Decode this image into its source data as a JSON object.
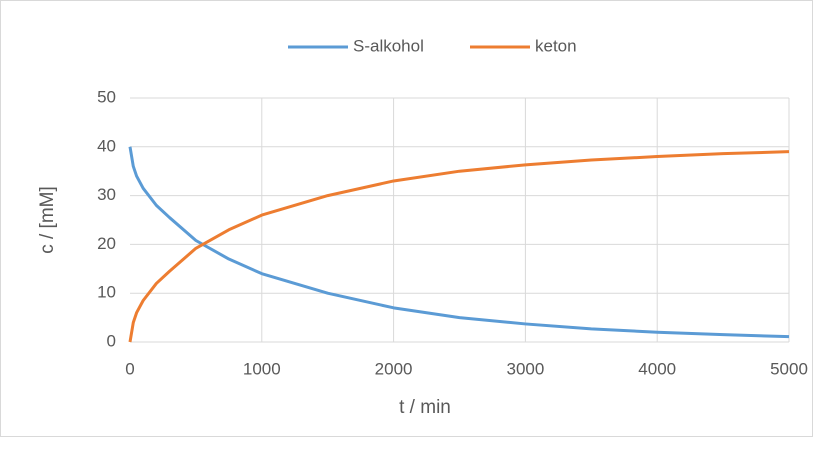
{
  "chart_data": {
    "type": "line",
    "xlabel": "t / min",
    "ylabel": "c / [mM]",
    "x": [
      0,
      25,
      50,
      100,
      200,
      300,
      500,
      750,
      1000,
      1500,
      2000,
      2500,
      3000,
      3500,
      4000,
      4500,
      5000
    ],
    "series": [
      {
        "name": "S-alkohol",
        "color": "#5b9bd5",
        "values": [
          40,
          36,
          34,
          31.5,
          28,
          25.5,
          20.8,
          17,
          14,
          10,
          7,
          5,
          3.7,
          2.7,
          2,
          1.5,
          1.1
        ]
      },
      {
        "name": "keton",
        "color": "#ed7d31",
        "values": [
          0,
          4,
          6,
          8.5,
          12,
          14.5,
          19.2,
          23,
          26,
          30,
          33,
          35,
          36.3,
          37.3,
          38,
          38.6,
          39
        ]
      }
    ],
    "xlim": [
      0,
      5000
    ],
    "xticks": [
      0,
      1000,
      2000,
      3000,
      4000,
      5000
    ],
    "ylim": [
      0,
      50
    ],
    "yticks": [
      0,
      10,
      20,
      30,
      40,
      50
    ],
    "grid": true,
    "legend": "top"
  }
}
